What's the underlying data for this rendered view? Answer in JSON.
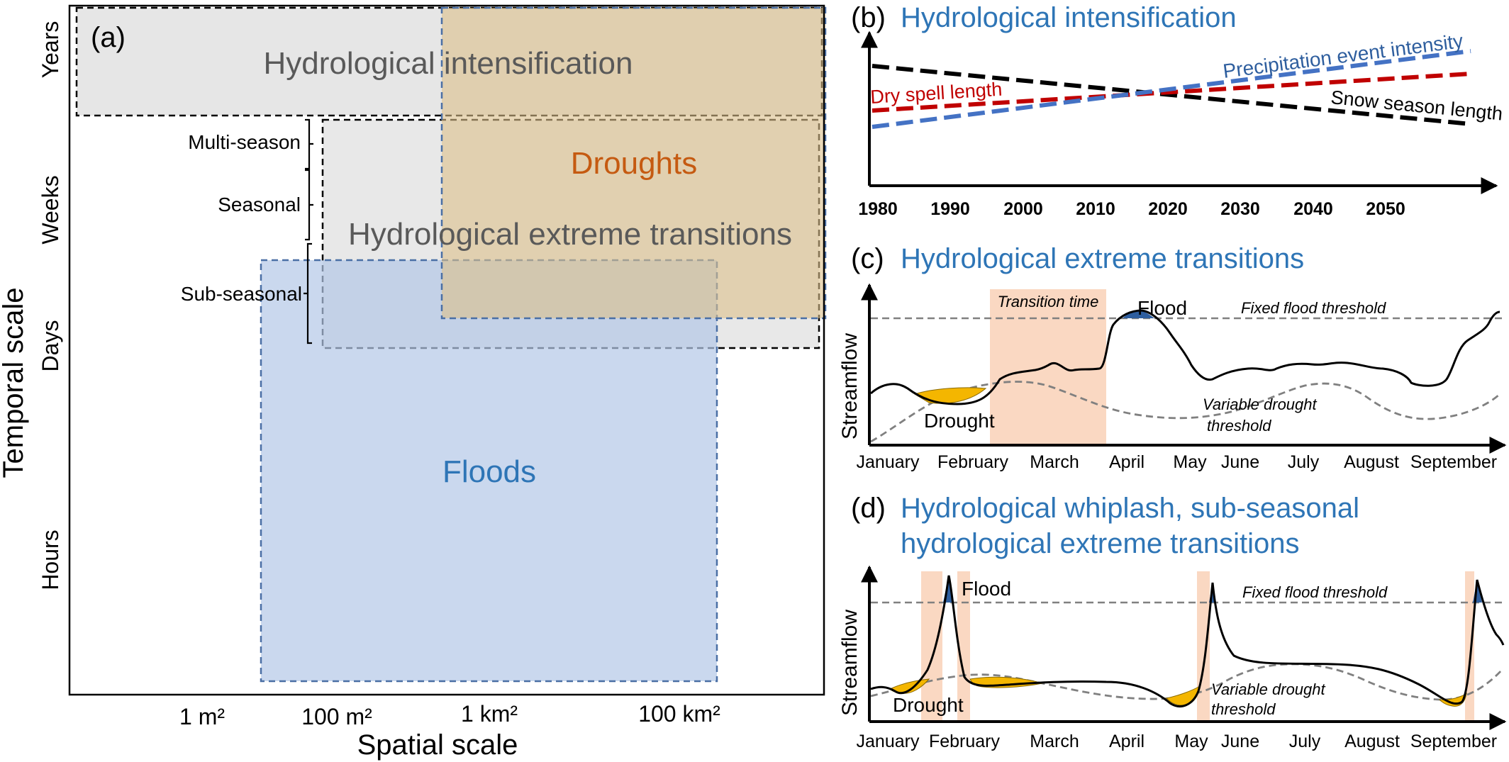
{
  "panel_a": {
    "tag": "(a)",
    "y_title": "Temporal scale",
    "x_title": "Spatial scale",
    "y_ticks": [
      "Years",
      "Weeks",
      "Days",
      "Hours"
    ],
    "x_ticks": [
      "1 m²",
      "100 m²",
      "1 km²",
      "100 km²"
    ],
    "brackets": [
      "Multi-season",
      "Seasonal",
      "Sub-seasonal"
    ],
    "regions": {
      "intensification": "Hydrological intensification",
      "droughts": "Droughts",
      "transitions": "Hydrological extreme transitions",
      "floods": "Floods"
    }
  },
  "panel_b": {
    "tag": "(b)",
    "title": "Hydrological intensification",
    "x_ticks": [
      "1980",
      "1990",
      "2000",
      "2010",
      "2020",
      "2030",
      "2040",
      "2050"
    ],
    "lines": {
      "precip": "Precipitation event intensity",
      "dry": "Dry spell length",
      "snow": "Snow season length"
    }
  },
  "panel_c": {
    "tag": "(c)",
    "title": "Hydrological extreme transitions",
    "ylabel": "Streamflow",
    "transition": "Transition time",
    "flood": "Flood",
    "drought": "Drought",
    "flood_threshold": "Fixed flood threshold",
    "drought_threshold_1": "Variable drought",
    "drought_threshold_2": "threshold",
    "months": [
      "January",
      "February",
      "March",
      "April",
      "May",
      "June",
      "July",
      "August",
      "September"
    ]
  },
  "panel_d": {
    "tag": "(d)",
    "title_1": "Hydrological whiplash, sub-seasonal",
    "title_2": "hydrological extreme transitions",
    "ylabel": "Streamflow",
    "flood": "Flood",
    "drought": "Drought",
    "flood_threshold": "Fixed flood threshold",
    "drought_threshold_1": "Variable drought",
    "drought_threshold_2": "threshold",
    "months": [
      "January",
      "February",
      "March",
      "April",
      "May",
      "June",
      "July",
      "August",
      "September"
    ]
  },
  "colors": {
    "blue_title": "#2E75B6",
    "drought_text": "#C55A11",
    "precip": "#4472C4",
    "dry": "#C00000",
    "snow": "#000000",
    "gray_text": "#595959"
  }
}
